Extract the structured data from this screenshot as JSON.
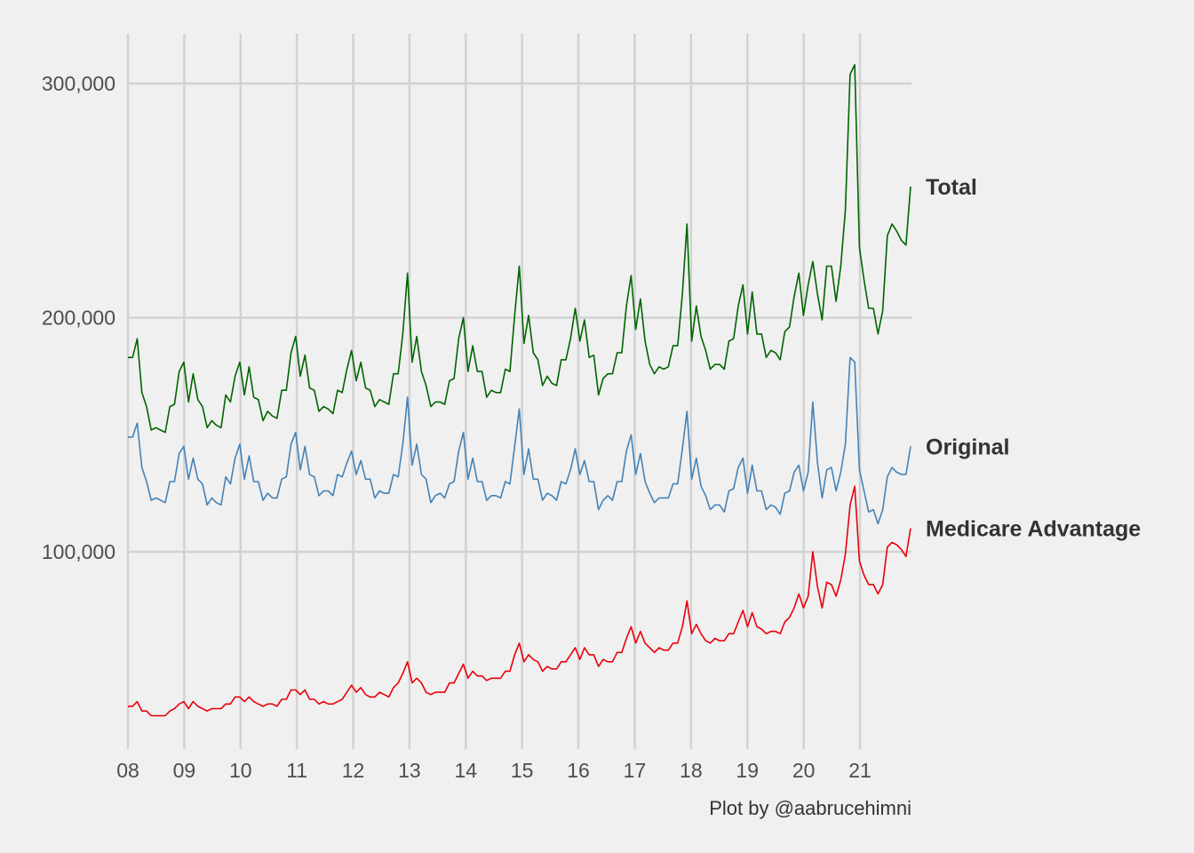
{
  "chart_data": {
    "type": "line",
    "title": "",
    "xlabel": "",
    "ylabel": "",
    "caption": "Plot by @aabrucehimni",
    "x_ticks": [
      "08",
      "09",
      "10",
      "11",
      "12",
      "13",
      "14",
      "15",
      "16",
      "17",
      "18",
      "19",
      "20",
      "21"
    ],
    "y_ticks": [
      100000,
      200000,
      300000
    ],
    "y_tick_labels": [
      "100,000",
      "200,000",
      "300,000"
    ],
    "xlim": [
      2008,
      2021.9
    ],
    "ylim": [
      12000,
      322000
    ],
    "x_start": 2008,
    "x_step": 0.0833333,
    "grid": true,
    "legend": "direct labels at right end of lines",
    "series": [
      {
        "name": "Total",
        "color": "#006400",
        "values": [
          183000,
          183000,
          191000,
          168000,
          162000,
          152000,
          153000,
          152000,
          151000,
          162000,
          163000,
          177000,
          181000,
          164000,
          176000,
          165000,
          162000,
          153000,
          156000,
          154000,
          153000,
          167000,
          164000,
          175000,
          181000,
          167000,
          179000,
          166000,
          165000,
          156000,
          160000,
          158000,
          157000,
          169000,
          169000,
          185000,
          192000,
          175000,
          184000,
          170000,
          169000,
          160000,
          162000,
          161000,
          159000,
          169000,
          168000,
          178000,
          186000,
          173000,
          181000,
          170000,
          169000,
          162000,
          165000,
          164000,
          163000,
          176000,
          176000,
          193000,
          219000,
          181000,
          192000,
          177000,
          171000,
          162000,
          164000,
          164000,
          163000,
          173000,
          174000,
          191000,
          200000,
          177000,
          188000,
          177000,
          177000,
          166000,
          169000,
          168000,
          168000,
          178000,
          177000,
          201000,
          222000,
          189000,
          201000,
          185000,
          182000,
          171000,
          175000,
          172000,
          171000,
          182000,
          182000,
          191000,
          204000,
          190000,
          199000,
          183000,
          184000,
          167000,
          174000,
          176000,
          176000,
          185000,
          185000,
          205000,
          218000,
          195000,
          208000,
          190000,
          180000,
          176000,
          179000,
          178000,
          179000,
          188000,
          188000,
          210000,
          240000,
          190000,
          205000,
          192000,
          186000,
          178000,
          180000,
          180000,
          178000,
          190000,
          191000,
          205000,
          214000,
          193000,
          211000,
          193000,
          193000,
          183000,
          186000,
          185000,
          182000,
          194000,
          196000,
          209000,
          219000,
          201000,
          214000,
          224000,
          210000,
          199000,
          222000,
          222000,
          207000,
          222000,
          246000,
          304000,
          308000,
          230000,
          216000,
          204000,
          204000,
          193000,
          203000,
          235000,
          240000,
          237000,
          233000,
          231000,
          256000
        ]
      },
      {
        "name": "Original",
        "color": "#4682b4",
        "values": [
          149000,
          149000,
          155000,
          136000,
          130000,
          122000,
          123000,
          122000,
          121000,
          130000,
          130000,
          142000,
          145000,
          131000,
          140000,
          131000,
          129000,
          120000,
          123000,
          121000,
          120000,
          132000,
          129000,
          140000,
          146000,
          131000,
          141000,
          130000,
          130000,
          122000,
          125000,
          123000,
          123000,
          131000,
          132000,
          146000,
          151000,
          135000,
          145000,
          133000,
          132000,
          124000,
          126000,
          126000,
          124000,
          133000,
          132000,
          138000,
          143000,
          133000,
          139000,
          131000,
          131000,
          123000,
          126000,
          125000,
          125000,
          133000,
          132000,
          146000,
          166000,
          137000,
          146000,
          133000,
          131000,
          121000,
          124000,
          125000,
          123000,
          129000,
          130000,
          143000,
          151000,
          131000,
          140000,
          130000,
          130000,
          122000,
          124000,
          124000,
          123000,
          130000,
          129000,
          145000,
          161000,
          133000,
          144000,
          131000,
          131000,
          122000,
          125000,
          124000,
          122000,
          130000,
          129000,
          135000,
          144000,
          133000,
          139000,
          130000,
          130000,
          118000,
          122000,
          124000,
          122000,
          130000,
          130000,
          143000,
          150000,
          133000,
          142000,
          130000,
          125000,
          121000,
          123000,
          123000,
          123000,
          129000,
          129000,
          144000,
          160000,
          131000,
          140000,
          128000,
          124000,
          118000,
          120000,
          120000,
          117000,
          126000,
          127000,
          136000,
          140000,
          125000,
          137000,
          126000,
          126000,
          118000,
          120000,
          119000,
          116000,
          125000,
          126000,
          134000,
          137000,
          126000,
          134000,
          164000,
          138000,
          123000,
          135000,
          136000,
          126000,
          134000,
          146000,
          183000,
          181000,
          135000,
          126000,
          117000,
          118000,
          112000,
          118000,
          132000,
          136000,
          134000,
          133000,
          133000,
          145000
        ]
      },
      {
        "name": "Medicare Advantage",
        "color": "#e8000b",
        "values": [
          34000,
          34000,
          36000,
          32000,
          32000,
          30000,
          30000,
          30000,
          30000,
          32000,
          33000,
          35000,
          36000,
          33000,
          36000,
          34000,
          33000,
          32000,
          33000,
          33000,
          33000,
          35000,
          35000,
          38000,
          38000,
          36000,
          38000,
          36000,
          35000,
          34000,
          35000,
          35000,
          34000,
          37000,
          37000,
          41000,
          41000,
          39000,
          41000,
          37000,
          37000,
          35000,
          36000,
          35000,
          35000,
          36000,
          37000,
          40000,
          43000,
          40000,
          42000,
          39000,
          38000,
          38000,
          40000,
          39000,
          38000,
          42000,
          44000,
          48000,
          53000,
          44000,
          46000,
          44000,
          40000,
          39000,
          40000,
          40000,
          40000,
          44000,
          44000,
          48000,
          52000,
          46000,
          49000,
          47000,
          47000,
          45000,
          46000,
          46000,
          46000,
          49000,
          49000,
          56000,
          61000,
          53000,
          56000,
          54000,
          53000,
          49000,
          51000,
          50000,
          50000,
          53000,
          53000,
          56000,
          59000,
          54000,
          59000,
          56000,
          56000,
          51000,
          54000,
          53000,
          53000,
          57000,
          57000,
          63000,
          68000,
          61000,
          66000,
          61000,
          59000,
          57000,
          59000,
          58000,
          58000,
          61000,
          61000,
          68000,
          79000,
          65000,
          69000,
          65000,
          62000,
          61000,
          63000,
          62000,
          62000,
          65000,
          65000,
          70000,
          75000,
          68000,
          74000,
          68000,
          67000,
          65000,
          66000,
          66000,
          65000,
          70000,
          72000,
          76000,
          82000,
          76000,
          81000,
          100000,
          85000,
          76000,
          87000,
          86000,
          81000,
          88000,
          99000,
          120000,
          128000,
          96000,
          90000,
          86000,
          86000,
          82000,
          86000,
          102000,
          104000,
          103000,
          101000,
          98000,
          110000
        ]
      }
    ]
  }
}
